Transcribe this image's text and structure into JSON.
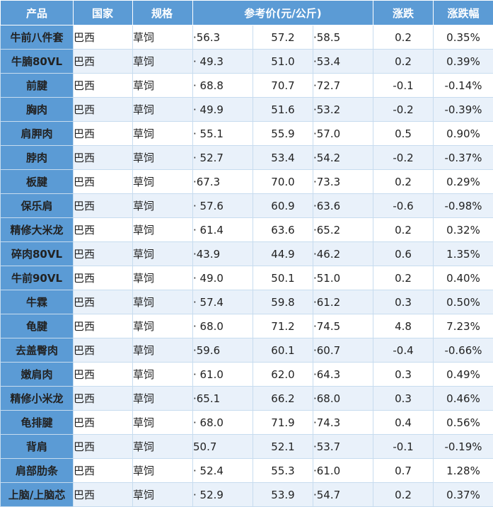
{
  "headers": {
    "product": "产品",
    "country": "国家",
    "spec": "规格",
    "price": "参考价(元/公斤)",
    "change": "涨跌",
    "change_pct": "涨跌幅"
  },
  "rows": [
    {
      "product": "牛前八件套",
      "country": "巴西",
      "spec": "草饲",
      "low": "·56.3",
      "mid": "57.2",
      "high": "·58.5",
      "change": "0.2",
      "pct": "0.35%"
    },
    {
      "product": "牛腩80VL",
      "country": "巴西",
      "spec": "草饲",
      "low": "· 49.3",
      "mid": "51.0",
      "high": "·53.4",
      "change": "0.2",
      "pct": "0.39%"
    },
    {
      "product": "前腱",
      "country": "巴西",
      "spec": "草饲",
      "low": "· 68.8",
      "mid": "70.7",
      "high": "·72.7",
      "change": "-0.1",
      "pct": "-0.14%"
    },
    {
      "product": "胸肉",
      "country": "巴西",
      "spec": "草饲",
      "low": "· 49.9",
      "mid": "51.6",
      "high": "·53.2",
      "change": "-0.2",
      "pct": "-0.39%"
    },
    {
      "product": "肩胛肉",
      "country": "巴西",
      "spec": "草饲",
      "low": "· 55.1",
      "mid": "55.9",
      "high": "·57.0",
      "change": "0.5",
      "pct": "0.90%"
    },
    {
      "product": "脖肉",
      "country": "巴西",
      "spec": "草饲",
      "low": "· 52.7",
      "mid": "53.4",
      "high": "·54.2",
      "change": "-0.2",
      "pct": "-0.37%"
    },
    {
      "product": "板腱",
      "country": "巴西",
      "spec": "草饲",
      "low": "·67.3",
      "mid": "70.0",
      "high": "·73.3",
      "change": "0.2",
      "pct": "0.29%"
    },
    {
      "product": "保乐肩",
      "country": "巴西",
      "spec": "草饲",
      "low": "· 57.6",
      "mid": "60.9",
      "high": "·63.6",
      "change": "-0.6",
      "pct": "-0.98%"
    },
    {
      "product": "精修大米龙",
      "country": "巴西",
      "spec": "草饲",
      "low": "· 61.4",
      "mid": "63.6",
      "high": "·65.2",
      "change": "0.2",
      "pct": "0.32%"
    },
    {
      "product": "碎肉80VL",
      "country": "巴西",
      "spec": "草饲",
      "low": "·43.9",
      "mid": "44.9",
      "high": "·46.2",
      "change": "0.6",
      "pct": "1.35%"
    },
    {
      "product": "牛前90VL",
      "country": "巴西",
      "spec": "草饲",
      "low": "· 49.0",
      "mid": "50.1",
      "high": "·51.0",
      "change": "0.2",
      "pct": "0.40%"
    },
    {
      "product": "牛霖",
      "country": "巴西",
      "spec": "草饲",
      "low": "· 57.4",
      "mid": "59.8",
      "high": "·61.2",
      "change": "0.3",
      "pct": "0.50%"
    },
    {
      "product": "龟腱",
      "country": "巴西",
      "spec": "草饲",
      "low": "· 68.0",
      "mid": "71.2",
      "high": "·74.5",
      "change": "4.8",
      "pct": "7.23%"
    },
    {
      "product": "去盖臀肉",
      "country": "巴西",
      "spec": "草饲",
      "low": "·59.6",
      "mid": "60.1",
      "high": "·60.7",
      "change": "-0.4",
      "pct": "-0.66%"
    },
    {
      "product": "嫩肩肉",
      "country": "巴西",
      "spec": "草饲",
      "low": "· 61.0",
      "mid": "62.0",
      "high": "·64.3",
      "change": "0.3",
      "pct": "0.49%"
    },
    {
      "product": "精修小米龙",
      "country": "巴西",
      "spec": "草饲",
      "low": "·65.1",
      "mid": "66.2",
      "high": "·68.0",
      "change": "0.3",
      "pct": "0.46%"
    },
    {
      "product": "龟排腱",
      "country": "巴西",
      "spec": "草饲",
      "low": "· 68.0",
      "mid": "71.9",
      "high": "·74.3",
      "change": "0.4",
      "pct": "0.56%"
    },
    {
      "product": "背肩",
      "country": "巴西",
      "spec": "草饲",
      "low": "50.7",
      "mid": "52.1",
      "high": "·53.7",
      "change": "-0.1",
      "pct": "-0.19%"
    },
    {
      "product": "肩部肋条",
      "country": "巴西",
      "spec": "草饲",
      "low": "· 52.4",
      "mid": "55.3",
      "high": "·61.0",
      "change": "0.7",
      "pct": "1.28%"
    },
    {
      "product": "上脑/上脑芯",
      "country": "巴西",
      "spec": "草饲",
      "low": "· 52.9",
      "mid": "53.9",
      "high": "·54.7",
      "change": "0.2",
      "pct": "0.37%"
    }
  ]
}
